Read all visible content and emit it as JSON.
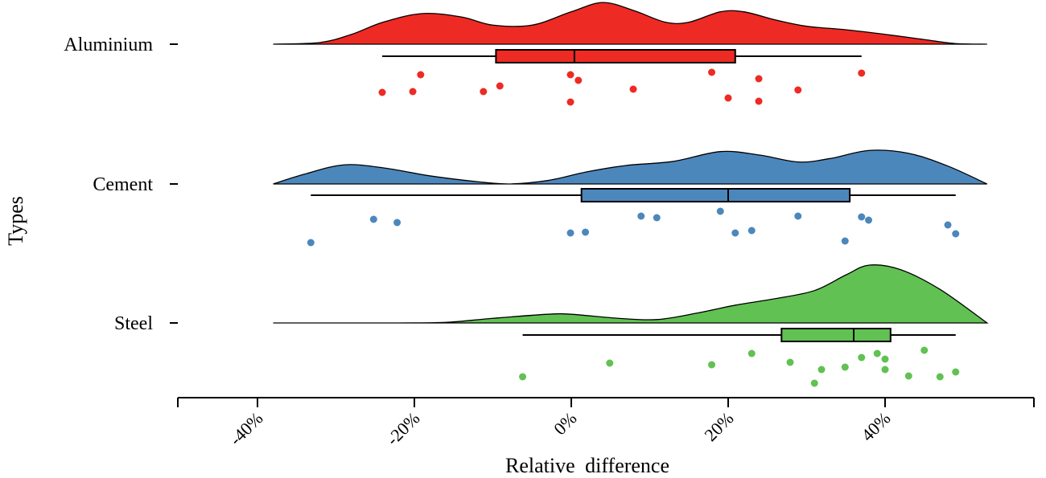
{
  "chart_data": {
    "type": "raincloud",
    "xlabel": "Relative difference",
    "ylabel": "Types",
    "xlim": [
      -50,
      59
    ],
    "x_ticks": [
      -40,
      -20,
      0,
      20,
      40
    ],
    "x_tick_labels": [
      "-40%",
      "-20%",
      "0%",
      "20%",
      "40%"
    ],
    "grid": false,
    "groups": [
      {
        "name": "Aluminium",
        "color": "#EE2A24",
        "points": [
          -24.1,
          -20.2,
          -19.2,
          -11.2,
          -9.1,
          -0.1,
          -0.1,
          0.9,
          7.9,
          17.9,
          20,
          23.9,
          23.9,
          28.9,
          37
        ],
        "box": {
          "whisker_low": -24.1,
          "q1": -9.6,
          "median": 0.4,
          "q3": 20.9,
          "whisker_high": 37
        },
        "density": [
          [
            -38,
            0
          ],
          [
            -32,
            0.03
          ],
          [
            -28,
            0.17
          ],
          [
            -24,
            0.38
          ],
          [
            -19,
            0.53
          ],
          [
            -14,
            0.47
          ],
          [
            -10,
            0.33
          ],
          [
            -5,
            0.33
          ],
          [
            0,
            0.56
          ],
          [
            4,
            0.72
          ],
          [
            8,
            0.58
          ],
          [
            12,
            0.38
          ],
          [
            15,
            0.38
          ],
          [
            19,
            0.56
          ],
          [
            22,
            0.56
          ],
          [
            26,
            0.42
          ],
          [
            30,
            0.31
          ],
          [
            35,
            0.25
          ],
          [
            40,
            0.17
          ],
          [
            45,
            0.08
          ],
          [
            49,
            0.01
          ],
          [
            53,
            0
          ]
        ]
      },
      {
        "name": "Cement",
        "color": "#4C87BC",
        "points": [
          -33.2,
          -25.2,
          -22.2,
          -0.1,
          1.8,
          8.9,
          10.9,
          19,
          20.9,
          23,
          28.9,
          34.9,
          37,
          37.9,
          48,
          49
        ],
        "box": {
          "whisker_low": -33.2,
          "q1": 1.3,
          "median": 20,
          "q3": 35.5,
          "whisker_high": 49
        },
        "density": [
          [
            -38,
            0
          ],
          [
            -34,
            0.17
          ],
          [
            -29,
            0.33
          ],
          [
            -24,
            0.28
          ],
          [
            -18,
            0.14
          ],
          [
            -12,
            0.04
          ],
          [
            -8,
            0
          ],
          [
            -3,
            0.06
          ],
          [
            2,
            0.21
          ],
          [
            7,
            0.32
          ],
          [
            13,
            0.39
          ],
          [
            19,
            0.56
          ],
          [
            24,
            0.5
          ],
          [
            29,
            0.38
          ],
          [
            33,
            0.44
          ],
          [
            38,
            0.58
          ],
          [
            43,
            0.53
          ],
          [
            48,
            0.31
          ],
          [
            53,
            0
          ]
        ]
      },
      {
        "name": "Steel",
        "color": "#61C152",
        "points": [
          -6.2,
          4.9,
          17.9,
          23,
          27.9,
          31,
          31.9,
          34.9,
          37,
          39,
          40,
          40,
          43,
          45,
          47,
          49
        ],
        "box": {
          "whisker_low": -6.2,
          "q1": 26.8,
          "median": 36,
          "q3": 40.7,
          "whisker_high": 49
        },
        "density": [
          [
            -38,
            0
          ],
          [
            -22,
            0
          ],
          [
            -16,
            0.01
          ],
          [
            -10,
            0.08
          ],
          [
            -3,
            0.15
          ],
          [
            0,
            0.15
          ],
          [
            6,
            0.08
          ],
          [
            11,
            0.06
          ],
          [
            16,
            0.17
          ],
          [
            21,
            0.31
          ],
          [
            26,
            0.42
          ],
          [
            31,
            0.56
          ],
          [
            35,
            0.83
          ],
          [
            38,
            1
          ],
          [
            42,
            0.92
          ],
          [
            47,
            0.58
          ],
          [
            53,
            0
          ]
        ]
      }
    ]
  }
}
